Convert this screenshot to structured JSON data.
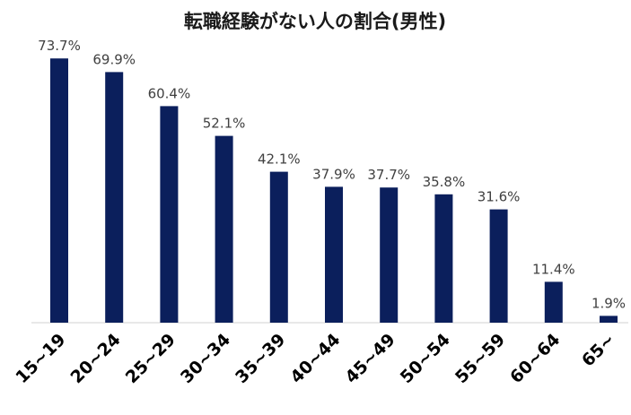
{
  "chart_data": {
    "type": "bar",
    "title": "転職経験がない人の割合(男性)",
    "categories": [
      "15~19",
      "20~24",
      "25~29",
      "30~34",
      "35~39",
      "40~44",
      "45~49",
      "50~54",
      "55~59",
      "60~64",
      "65~"
    ],
    "values": [
      73.7,
      69.9,
      60.4,
      52.1,
      42.1,
      37.9,
      37.7,
      35.8,
      31.6,
      11.4,
      1.9
    ],
    "value_labels": [
      "73.7%",
      "69.9%",
      "60.4%",
      "52.1%",
      "42.1%",
      "37.9%",
      "37.7%",
      "35.8%",
      "31.6%",
      "11.4%",
      "1.9%"
    ],
    "xlabel": "",
    "ylabel": "",
    "ylim": [
      0,
      80
    ],
    "grid": false,
    "legend": "none",
    "bar_color": "#0b1f5c"
  }
}
